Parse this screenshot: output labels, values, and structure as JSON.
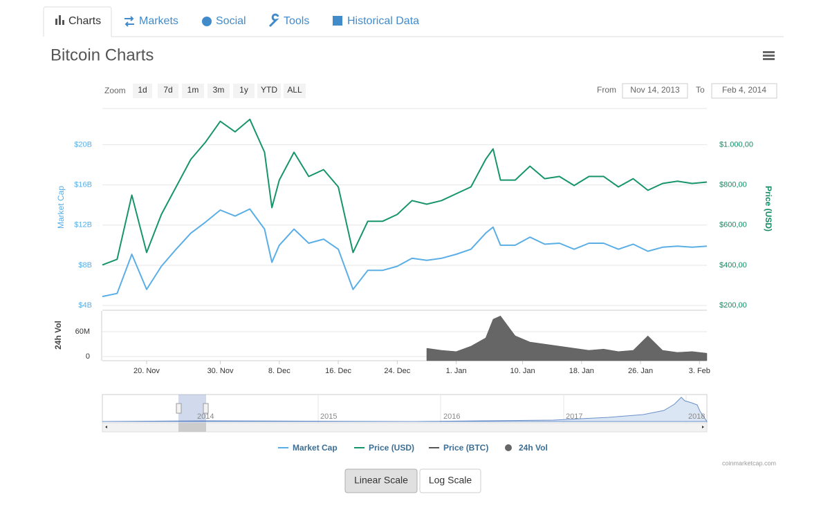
{
  "tabs": [
    "Charts",
    "Markets",
    "Social",
    "Tools",
    "Historical Data"
  ],
  "zoom": {
    "label": "Zoom",
    "buttons": [
      "1d",
      "7d",
      "1m",
      "3m",
      "1y",
      "YTD",
      "ALL"
    ]
  },
  "range": {
    "from_label": "From",
    "from": "Nov 14, 2013",
    "to_label": "To",
    "to": "Feb 4, 2014"
  },
  "navigator": {
    "labels": [
      "2014",
      "2015",
      "2016",
      "2017",
      "2018"
    ]
  },
  "credit": "coinmarketcap.com",
  "scale_buttons": [
    "Linear Scale",
    "Log Scale"
  ],
  "chart_data": {
    "type": "line",
    "title": "Bitcoin Charts",
    "ylabel": "Market Cap",
    "y2label": "Price (USD)",
    "y3label": "24h Vol",
    "x": [
      "2013-11-14",
      "2013-11-16",
      "2013-11-18",
      "2013-11-20",
      "2013-11-22",
      "2013-11-24",
      "2013-11-26",
      "2013-11-28",
      "2013-11-30",
      "2013-12-02",
      "2013-12-04",
      "2013-12-06",
      "2013-12-07",
      "2013-12-08",
      "2013-12-10",
      "2013-12-12",
      "2013-12-14",
      "2013-12-16",
      "2013-12-18",
      "2013-12-20",
      "2013-12-22",
      "2013-12-24",
      "2013-12-26",
      "2013-12-28",
      "2013-12-30",
      "2014-01-01",
      "2014-01-03",
      "2014-01-05",
      "2014-01-06",
      "2014-01-07",
      "2014-01-09",
      "2014-01-11",
      "2014-01-13",
      "2014-01-15",
      "2014-01-17",
      "2014-01-19",
      "2014-01-21",
      "2014-01-23",
      "2014-01-25",
      "2014-01-27",
      "2014-01-29",
      "2014-01-31",
      "2014-02-02",
      "2014-02-04"
    ],
    "xlim": [
      "2013-11-14",
      "2014-02-04"
    ],
    "xticks": [
      {
        "value": "2013-11-20",
        "label": "20. Nov"
      },
      {
        "value": "2013-11-30",
        "label": "30. Nov"
      },
      {
        "value": "2013-12-08",
        "label": "8. Dec"
      },
      {
        "value": "2013-12-16",
        "label": "16. Dec"
      },
      {
        "value": "2013-12-24",
        "label": "24. Dec"
      },
      {
        "value": "2014-01-01",
        "label": "1. Jan"
      },
      {
        "value": "2014-01-10",
        "label": "10. Jan"
      },
      {
        "value": "2014-01-18",
        "label": "18. Jan"
      },
      {
        "value": "2014-01-26",
        "label": "26. Jan"
      },
      {
        "value": "2014-02-03",
        "label": "3. Feb"
      }
    ],
    "ylim": [
      3.6,
      23.6
    ],
    "yticks": [
      {
        "value": 4,
        "label": "$4B"
      },
      {
        "value": 8,
        "label": "$8B"
      },
      {
        "value": 12,
        "label": "$12B"
      },
      {
        "value": 16,
        "label": "$16B"
      },
      {
        "value": 20,
        "label": "$20B"
      }
    ],
    "y2lim": [
      180,
      1180
    ],
    "y2ticks": [
      {
        "value": 200,
        "label": "$200,00"
      },
      {
        "value": 400,
        "label": "$400,00"
      },
      {
        "value": 600,
        "label": "$600,00"
      },
      {
        "value": 800,
        "label": "$800,00"
      },
      {
        "value": 1000,
        "label": "$1.000,00"
      }
    ],
    "y3lim": [
      -10,
      110
    ],
    "y3ticks": [
      0,
      {
        "value": 60,
        "label": "60M"
      }
    ],
    "grid": true,
    "series": [
      {
        "name": "Market Cap",
        "color": "#5aaee6",
        "axis": "y",
        "values": [
          4.9,
          5.2,
          9.1,
          5.6,
          7.9,
          9.6,
          11.2,
          12.3,
          13.5,
          12.9,
          13.6,
          11.6,
          8.3,
          10.0,
          11.6,
          10.2,
          10.6,
          9.6,
          5.6,
          7.5,
          7.5,
          7.9,
          8.7,
          8.5,
          8.7,
          9.1,
          9.6,
          11.2,
          11.8,
          10.0,
          10.0,
          10.8,
          10.1,
          10.2,
          9.6,
          10.2,
          10.2,
          9.6,
          10.1,
          9.4,
          9.8,
          9.9,
          9.8,
          9.9
        ]
      },
      {
        "name": "Price (USD)",
        "color": "#16946a",
        "axis": "y2",
        "values": [
          402,
          430,
          749,
          464,
          653,
          790,
          927,
          1013,
          1116,
          1064,
          1126,
          962,
          687,
          824,
          962,
          842,
          876,
          790,
          464,
          619,
          619,
          653,
          722,
          704,
          722,
          756,
          790,
          927,
          979,
          824,
          824,
          893,
          831,
          842,
          797,
          842,
          842,
          790,
          831,
          773,
          807,
          818,
          807,
          814
        ]
      },
      {
        "name": "24h Vol",
        "color": "#666666",
        "axis": "y3",
        "values": [
          null,
          null,
          null,
          null,
          null,
          null,
          null,
          null,
          null,
          null,
          null,
          null,
          null,
          null,
          null,
          null,
          null,
          null,
          null,
          null,
          null,
          null,
          null,
          20,
          15,
          12,
          25,
          45,
          90,
          98,
          50,
          35,
          30,
          25,
          20,
          15,
          18,
          12,
          15,
          50,
          15,
          10,
          12,
          8
        ]
      }
    ],
    "legend_only": [
      {
        "name": "Price (BTC)",
        "color": "#555555"
      }
    ]
  }
}
